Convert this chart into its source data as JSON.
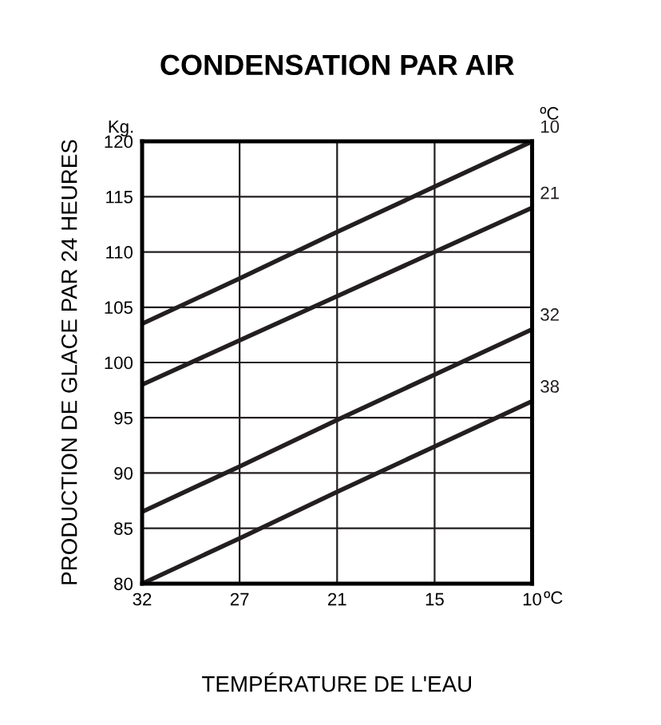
{
  "chart_data": {
    "type": "line",
    "title": "CONDENSATION PAR AIR",
    "xlabel": "TEMPÉRATURE DE L'EAU",
    "ylabel": "PRODUCTION DE GLACE PAR 24 HEURES",
    "categories": [
      "32",
      "27",
      "21",
      "15",
      "10"
    ],
    "series": [
      {
        "name": "10",
        "color": "#231f20",
        "values": [
          103.5,
          107.6,
          111.8,
          115.9,
          120
        ]
      },
      {
        "name": "21",
        "color": "#231f20",
        "values": [
          98,
          102,
          106,
          110,
          114
        ]
      },
      {
        "name": "32",
        "color": "#231f20",
        "values": [
          86.5,
          90.6,
          94.8,
          98.9,
          103
        ]
      },
      {
        "name": "38",
        "color": "#231f20",
        "values": [
          80,
          84.1,
          88.3,
          92.4,
          96.5
        ]
      }
    ],
    "ylim": [
      80,
      120
    ],
    "yticks": [
      80,
      85,
      90,
      95,
      100,
      105,
      110,
      115,
      120
    ],
    "grid": true,
    "legend": false,
    "marker": "none",
    "line_style": "solid",
    "annotations": [
      "Kg.",
      "ºC",
      "ºC"
    ]
  }
}
